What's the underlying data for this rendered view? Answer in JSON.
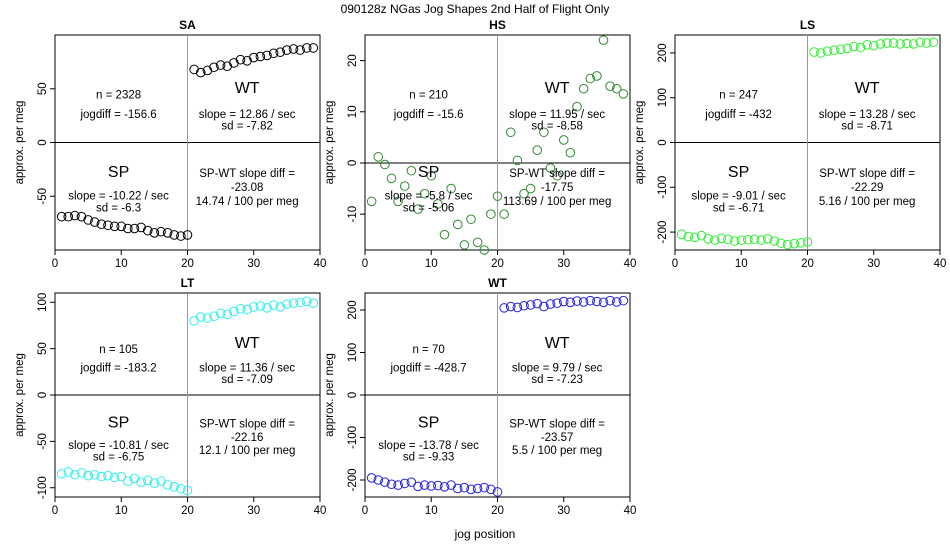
{
  "figure": {
    "title": "090128z   NGas Jog Shapes 2nd Half of Flight Only",
    "xlabel": "jog position",
    "ylabel": "approx. per meg",
    "wt_label": "WT",
    "sp_label": "SP",
    "slope_diff_label": "SP-WT slope diff ="
  },
  "chart_data": [
    {
      "type": "scatter",
      "title": "SA",
      "color": "#000000",
      "xlim": [
        0,
        40
      ],
      "ylim": [
        -100,
        100
      ],
      "xticks": [
        0,
        10,
        20,
        30,
        40
      ],
      "yticks": [
        -50,
        0,
        50
      ],
      "x": [
        1,
        2,
        3,
        4,
        5,
        6,
        7,
        8,
        9,
        10,
        11,
        12,
        13,
        14,
        15,
        16,
        17,
        18,
        19,
        20,
        21,
        22,
        23,
        24,
        25,
        26,
        27,
        28,
        29,
        30,
        31,
        32,
        33,
        34,
        35,
        36,
        37,
        38,
        39
      ],
      "y": [
        -69,
        -69,
        -68,
        -69,
        -72,
        -74,
        -76,
        -77,
        -78,
        -78,
        -80,
        -80,
        -79,
        -82,
        -84,
        -83,
        -84,
        -86,
        -87,
        -86,
        68,
        65,
        67,
        70,
        72,
        71,
        74,
        77,
        76,
        79,
        80,
        81,
        83,
        84,
        86,
        87,
        86,
        88,
        88
      ],
      "annotations": {
        "n": "n = 2328",
        "jogdiff": "jogdiff = -156.6",
        "wt_slope": "slope = 12.86 / sec",
        "wt_sd": "sd = -7.82",
        "sp_slope": "slope = -10.22 / sec",
        "sp_sd": "sd = -6.3",
        "slope_diff": "-23.08",
        "per_meg": "14.74 / 100 per meg"
      }
    },
    {
      "type": "scatter",
      "title": "HS",
      "color": "#2e8b2e",
      "xlim": [
        0,
        40
      ],
      "ylim": [
        -17,
        25
      ],
      "xticks": [
        0,
        10,
        20,
        30,
        40
      ],
      "yticks": [
        -10,
        0,
        10,
        20
      ],
      "x": [
        1,
        2,
        3,
        4,
        5,
        6,
        7,
        8,
        9,
        10,
        11,
        12,
        13,
        14,
        15,
        16,
        17,
        18,
        19,
        20,
        21,
        22,
        23,
        24,
        25,
        26,
        27,
        28,
        29,
        30,
        31,
        32,
        33,
        34,
        35,
        36,
        37,
        38,
        39
      ],
      "y": [
        -7.5,
        1.2,
        -0.3,
        -3,
        -7.5,
        -4.5,
        -1.5,
        -9,
        -6,
        -2.5,
        -8,
        -14,
        -5,
        -12,
        -16,
        -11,
        -15.5,
        -17,
        -10,
        -6.5,
        -10,
        6,
        0.5,
        -6,
        -5,
        2.5,
        6,
        -1,
        -2.5,
        4.5,
        2,
        11,
        14.5,
        16.5,
        17,
        24,
        15,
        14.5,
        13.5
      ],
      "annotations": {
        "n": "n = 210",
        "jogdiff": "jogdiff = -15.6",
        "wt_slope": "slope = 11.95 / sec",
        "wt_sd": "sd = -8.58",
        "sp_slope": "slope = -5.8 / sec",
        "sp_sd": "sd = -5.06",
        "slope_diff": "-17.75",
        "per_meg": "113.69 / 100 per meg"
      }
    },
    {
      "type": "scatter",
      "title": "LS",
      "color": "#33ee33",
      "xlim": [
        0,
        40
      ],
      "ylim": [
        -240,
        240
      ],
      "xticks": [
        0,
        10,
        20,
        30,
        40
      ],
      "yticks": [
        -200,
        -100,
        0,
        100,
        200
      ],
      "x": [
        1,
        2,
        3,
        4,
        5,
        6,
        7,
        8,
        9,
        10,
        11,
        12,
        13,
        14,
        15,
        16,
        17,
        18,
        19,
        20,
        21,
        22,
        23,
        24,
        25,
        26,
        27,
        28,
        29,
        30,
        31,
        32,
        33,
        34,
        35,
        36,
        37,
        38,
        39
      ],
      "y": [
        -205,
        -210,
        -212,
        -208,
        -215,
        -218,
        -214,
        -216,
        -220,
        -218,
        -217,
        -216,
        -218,
        -215,
        -220,
        -225,
        -228,
        -226,
        -224,
        -222,
        202,
        200,
        204,
        206,
        208,
        210,
        214,
        212,
        218,
        216,
        220,
        222,
        222,
        220,
        221,
        220,
        224,
        222,
        224
      ],
      "annotations": {
        "n": "n = 247",
        "jogdiff": "jogdiff = -432",
        "wt_slope": "slope = 13.28 / sec",
        "wt_sd": "sd = -8.71",
        "sp_slope": "slope = -9.01 / sec",
        "sp_sd": "sd = -6.71",
        "slope_diff": "-22.29",
        "per_meg": "5.16 / 100 per meg"
      }
    },
    {
      "type": "scatter",
      "title": "LT",
      "color": "#33eeee",
      "xlim": [
        0,
        40
      ],
      "ylim": [
        -110,
        110
      ],
      "xticks": [
        0,
        10,
        20,
        30,
        40
      ],
      "yticks": [
        -100,
        -50,
        0,
        50,
        100
      ],
      "x": [
        1,
        2,
        3,
        4,
        5,
        6,
        7,
        8,
        9,
        10,
        11,
        12,
        13,
        14,
        15,
        16,
        17,
        18,
        19,
        20,
        21,
        22,
        23,
        24,
        25,
        26,
        27,
        28,
        29,
        30,
        31,
        32,
        33,
        34,
        35,
        36,
        37,
        38,
        39
      ],
      "y": [
        -85,
        -83,
        -86,
        -84,
        -87,
        -86,
        -88,
        -87,
        -89,
        -88,
        -93,
        -90,
        -94,
        -92,
        -95,
        -93,
        -97,
        -99,
        -101,
        -103,
        80,
        84,
        83,
        85,
        88,
        87,
        90,
        93,
        92,
        95,
        96,
        94,
        97,
        95,
        98,
        99,
        100,
        101,
        99
      ],
      "annotations": {
        "n": "n = 105",
        "jogdiff": "jogdiff = -183.2",
        "wt_slope": "slope = 11.36 / sec",
        "wt_sd": "sd = -7.09",
        "sp_slope": "slope = -10.81 / sec",
        "sp_sd": "sd = -6.75",
        "slope_diff": "-22.16",
        "per_meg": "12.1 / 100 per meg"
      }
    },
    {
      "type": "scatter",
      "title": "WT",
      "color": "#2222dd",
      "xlim": [
        0,
        40
      ],
      "ylim": [
        -240,
        240
      ],
      "xticks": [
        0,
        10,
        20,
        30,
        40
      ],
      "yticks": [
        -200,
        -100,
        0,
        100,
        200
      ],
      "x": [
        1,
        2,
        3,
        4,
        5,
        6,
        7,
        8,
        9,
        10,
        11,
        12,
        13,
        14,
        15,
        16,
        17,
        18,
        19,
        20,
        21,
        22,
        23,
        24,
        25,
        26,
        27,
        28,
        29,
        30,
        31,
        32,
        33,
        34,
        35,
        36,
        37,
        38,
        39
      ],
      "y": [
        -195,
        -200,
        -205,
        -210,
        -212,
        -208,
        -205,
        -215,
        -212,
        -214,
        -213,
        -216,
        -212,
        -220,
        -218,
        -222,
        -220,
        -218,
        -222,
        -228,
        205,
        208,
        206,
        210,
        212,
        215,
        208,
        214,
        216,
        220,
        218,
        221,
        219,
        222,
        220,
        218,
        222,
        219,
        222
      ],
      "annotations": {
        "n": "n = 70",
        "jogdiff": "jogdiff = -428.7",
        "wt_slope": "slope = 9.79 / sec",
        "wt_sd": "sd = -7.23",
        "sp_slope": "slope = -13.78 / sec",
        "sp_sd": "sd = -9.33",
        "slope_diff": "-23.57",
        "per_meg": "5.5 / 100 per meg"
      }
    }
  ]
}
